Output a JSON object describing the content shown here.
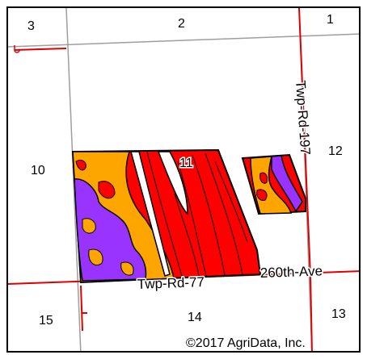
{
  "sections": [
    "3",
    "2",
    "1",
    "10",
    "11",
    "12",
    "15",
    "14",
    "13"
  ],
  "roads": {
    "north_south": "Twp-Rd-197",
    "east_west_1": "Twp-Rd-77",
    "east_west_2": "260th-Ave"
  },
  "copyright": "©2017 AgriData, Inc.",
  "colors": {
    "red": "#ff0000",
    "orange": "#ffa500",
    "purple": "#9933ff",
    "boundary": "#000000",
    "section_line": "#9e9e9e",
    "road_line": "#e00000"
  }
}
